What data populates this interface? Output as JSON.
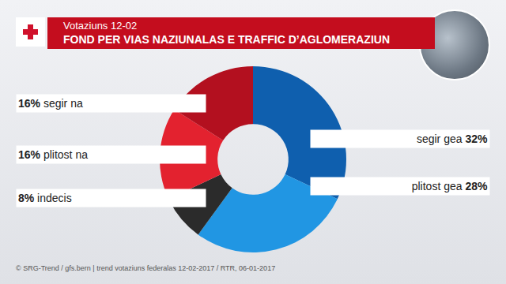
{
  "chart_data": {
    "type": "pie",
    "subtitle": "Votaziuns 12-02",
    "title": "FOND PER VIAS NAZIUNALAS E TRAFFIC D’AGLOMERAZIUN",
    "source": "© SRG-Trend / gfs.bern  |  trend votaziuns federalas 12-02-2017 / RTR, 06-01-2017",
    "categories": [
      "segir gea",
      "plitost gea",
      "indecis",
      "plitost na",
      "segir na"
    ],
    "values": [
      32,
      28,
      8,
      16,
      16
    ],
    "value_labels": [
      "32%",
      "28%",
      "8%",
      "16%",
      "16%"
    ],
    "colors": [
      "#0f5fae",
      "#2196e3",
      "#2b2b2b",
      "#e3222f",
      "#b3101f"
    ],
    "data_labels": true
  }
}
